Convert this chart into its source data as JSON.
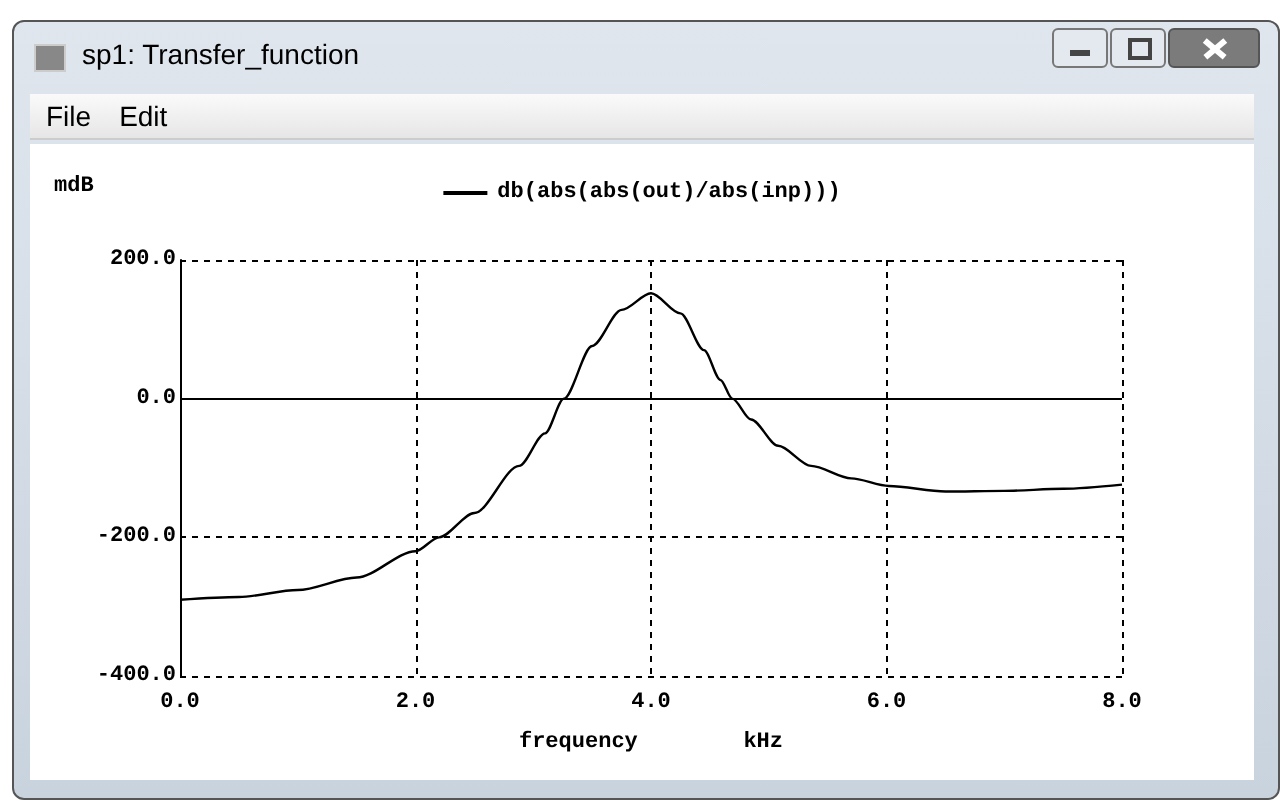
{
  "chart_data": {
    "type": "line",
    "title": "sp1: Transfer_function",
    "annotations": [
      "File",
      "Edit"
    ],
    "ylabel": "mdB",
    "xlabel": "frequency        kHz",
    "x": [
      0,
      0.5,
      1,
      1.5,
      2,
      2.2,
      2.5,
      2.88,
      3.1,
      3.26,
      3.5,
      3.75,
      4,
      4.25,
      4.45,
      4.59,
      4.69,
      4.85,
      5.08,
      5.36,
      5.7,
      6.02,
      6.5,
      7,
      7.5,
      8
    ],
    "series": [
      {
        "name": "db(abs(abs(out)/abs(inp)))",
        "color": "#000000",
        "values": [
          -290,
          -286,
          -276,
          -258,
          -220,
          -200,
          -165,
          -97,
          -50,
          0,
          76,
          128,
          152,
          123,
          70,
          27,
          0,
          -30,
          -68,
          -97,
          -115,
          -126,
          -134,
          -133,
          -130,
          -124
        ]
      }
    ],
    "xlim": [
      0,
      8
    ],
    "xticks": [
      {
        "value": 0,
        "label": "0.0"
      },
      {
        "value": 2,
        "label": "2.0"
      },
      {
        "value": 4,
        "label": "4.0"
      },
      {
        "value": 6,
        "label": "6.0"
      },
      {
        "value": 8,
        "label": "8.0"
      }
    ],
    "ylim": [
      -400,
      200
    ],
    "yticks": [
      {
        "value": -400,
        "label": "-400.0"
      },
      {
        "value": -200,
        "label": "-200.0"
      },
      {
        "value": 0,
        "label": "0.0"
      },
      {
        "value": 200,
        "label": "200.0"
      }
    ],
    "ref_lines": [
      {
        "axis": "y",
        "value": 0,
        "color": "#000000",
        "line_style": "solid"
      }
    ],
    "grid": true,
    "legend": "top",
    "marker": "none",
    "line_style": "solid"
  }
}
